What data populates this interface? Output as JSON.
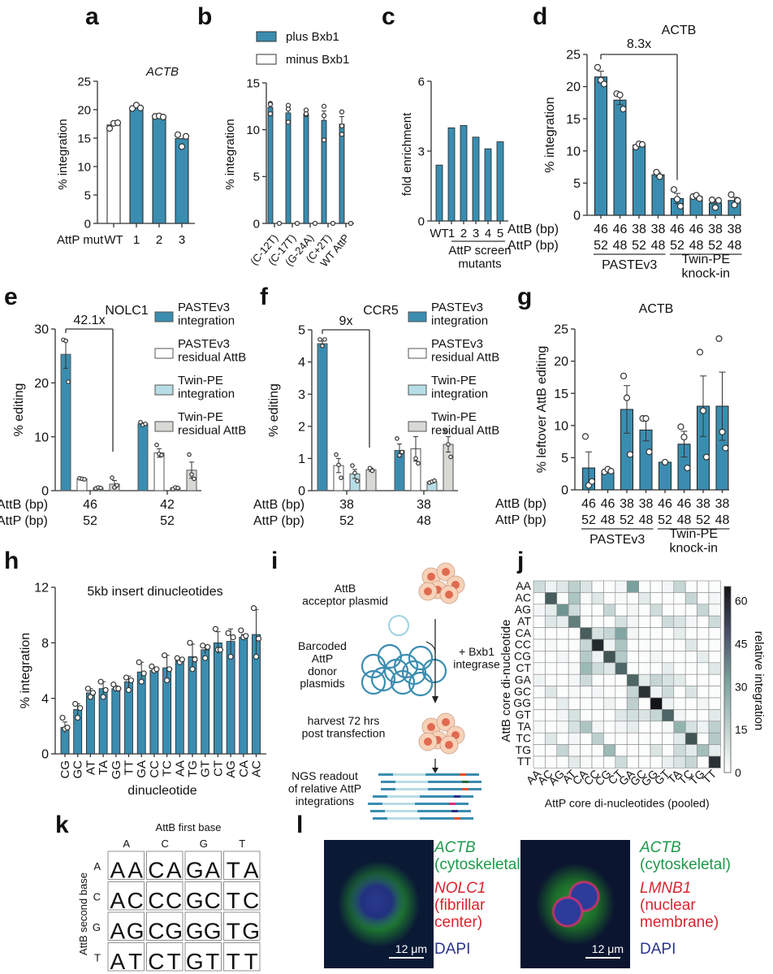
{
  "panel_labels": [
    "a",
    "b",
    "c",
    "d",
    "e",
    "f",
    "g",
    "h",
    "i",
    "j",
    "k",
    "l"
  ],
  "colors": {
    "teal": "#3a8db0",
    "teal_dark": "#2f7fa3",
    "light_blue": "#b7dde6",
    "grey": "#d8d8d4",
    "white": "#ffffff",
    "green_text": "#1e9a4a",
    "red_text": "#d9252f",
    "blue_text": "#2b3590"
  },
  "chart_data": [
    {
      "id": "a",
      "type": "bar",
      "title": "ACTB",
      "ylabel": "% integration",
      "xlabel_prefix": "AttP mut",
      "categories": [
        "WT",
        "1",
        "2",
        "3"
      ],
      "values": [
        17.3,
        20.3,
        18.8,
        14.9
      ],
      "points": [
        [
          16.7,
          17.6,
          17.7
        ],
        [
          20.2,
          20.8,
          20.3
        ],
        [
          18.8,
          18.9,
          18.7
        ],
        [
          15.6,
          13.5,
          15.3
        ]
      ],
      "fills": [
        "white",
        "teal",
        "teal",
        "teal"
      ],
      "ylim": [
        0,
        25
      ],
      "yticks": [
        0,
        5,
        10,
        15,
        20,
        25
      ]
    },
    {
      "id": "b",
      "type": "bar",
      "ylabel": "% integration",
      "legend": [
        {
          "label": "plus Bxb1",
          "fill": "teal"
        },
        {
          "label": "minus Bxb1",
          "fill": "white"
        }
      ],
      "legend_position": "top",
      "categories": [
        "(C-12T)",
        "(C-17T)",
        "(G-24A)",
        "(C+2T)",
        "WT AttP"
      ],
      "series": [
        {
          "name": "plus Bxb1",
          "values": [
            12.4,
            11.8,
            11.7,
            11.0,
            10.6
          ],
          "sem": [
            0.4,
            0.5,
            0.3,
            1.0,
            0.8
          ],
          "points": [
            [
              12.8,
              11.7,
              12.7
            ],
            [
              12.6,
              12.2,
              10.8
            ],
            [
              12.1,
              11.6,
              11.7
            ],
            [
              12.5,
              11.5,
              8.9
            ],
            [
              11.9,
              10.4,
              9.5
            ]
          ]
        },
        {
          "name": "minus Bxb1",
          "values": [
            0,
            0,
            0,
            0,
            0
          ],
          "sem": [
            0,
            0,
            0,
            0,
            0
          ],
          "points": [
            [
              0
            ],
            [
              0
            ],
            [
              0
            ],
            [
              0
            ],
            [
              0
            ]
          ]
        }
      ],
      "ylim": [
        0,
        15
      ],
      "yticks": [
        0,
        5,
        10,
        15
      ]
    },
    {
      "id": "c",
      "type": "bar",
      "ylabel": "fold enrichment",
      "categories": [
        "WT",
        "1",
        "2",
        "3",
        "4",
        "5"
      ],
      "values": [
        2.4,
        4.0,
        4.1,
        3.6,
        3.1,
        3.4
      ],
      "group_label": "AttP screen mutants",
      "ylim": [
        0,
        6
      ],
      "yticks": [
        0,
        3,
        6
      ]
    },
    {
      "id": "d",
      "type": "bar",
      "title": "ACTB",
      "ylabel": "% integration",
      "row_labels": [
        "AttB (bp)",
        "AttP (bp)"
      ],
      "attb": [
        "46",
        "46",
        "38",
        "38",
        "46",
        "46",
        "38",
        "38"
      ],
      "attp": [
        "52",
        "48",
        "52",
        "48",
        "52",
        "48",
        "52",
        "48"
      ],
      "values": [
        21.5,
        17.9,
        10.9,
        6.3,
        2.6,
        2.9,
        1.9,
        2.3
      ],
      "sem": [
        0.9,
        0.7,
        0.2,
        0.3,
        0.8,
        0.3,
        0.4,
        0.5
      ],
      "points": [
        [
          23.0,
          21.0,
          20.4
        ],
        [
          18.9,
          18.7,
          16.5
        ],
        [
          10.6,
          11.1,
          11.0
        ],
        [
          6.7,
          6.0
        ],
        [
          4.0,
          2.5,
          1.4
        ],
        [
          2.9,
          3.1,
          2.6
        ],
        [
          2.4,
          1.2,
          2.3
        ],
        [
          3.2,
          1.6,
          2.3
        ]
      ],
      "groups": [
        {
          "label": "PASTEv3",
          "span": [
            0,
            3
          ]
        },
        {
          "label": "Twin-PE\nknock-in",
          "span": [
            4,
            7
          ]
        }
      ],
      "annotation": {
        "text": "8.3x",
        "from": 0,
        "to": 4
      },
      "ylim": [
        0,
        25
      ],
      "yticks": [
        0,
        5,
        10,
        15,
        20,
        25
      ]
    },
    {
      "id": "e",
      "type": "bar",
      "title": "NOLC1",
      "ylabel": "% editing",
      "row_labels": [
        "AttB (bp)",
        "AttP (bp)"
      ],
      "groups": [
        {
          "attb": "46",
          "attp": "52"
        },
        {
          "attb": "42",
          "attp": "52"
        }
      ],
      "legend": [
        {
          "label": "PASTEv3\nintegration",
          "fill": "teal"
        },
        {
          "label": "PASTEv3\nresidual AttB",
          "fill": "white"
        },
        {
          "label": "Twin-PE\nintegration",
          "fill": "light_blue"
        },
        {
          "label": "Twin-PE\nresidual AttB",
          "fill": "grey"
        }
      ],
      "series_values": [
        [
          25.3,
          2.2,
          0.5,
          1.2
        ],
        [
          12.4,
          7.0,
          0.5,
          3.8
        ]
      ],
      "series_sem": [
        [
          2.6,
          0.1,
          0.1,
          0.7
        ],
        [
          0.2,
          0.8,
          0.1,
          1.5
        ]
      ],
      "series_points": [
        [
          [
            28.0,
            27.8,
            20.2
          ],
          [
            2.3,
            2.2,
            2.1
          ],
          [
            0.4,
            0.6,
            0.5
          ],
          [
            2.4,
            0.6,
            1.0
          ]
        ],
        [
          [
            12.7,
            12.2,
            12.4
          ],
          [
            8.5,
            6.8,
            6.6
          ],
          [
            0.3,
            0.6,
            0.5
          ],
          [
            6.7,
            3.0,
            2.2
          ]
        ]
      ],
      "annotation": {
        "text": "42.1x"
      },
      "ylim": [
        0,
        30
      ],
      "yticks": [
        0,
        10,
        20,
        30
      ]
    },
    {
      "id": "f",
      "type": "bar",
      "title": "CCR5",
      "ylabel": "% editing",
      "row_labels": [
        "AttB (bp)",
        "AttP (bp)"
      ],
      "groups": [
        {
          "attb": "38",
          "attp": "52"
        },
        {
          "attb": "38",
          "attp": "48"
        }
      ],
      "legend": [
        {
          "label": "PASTEv3\nintegration",
          "fill": "teal"
        },
        {
          "label": "PASTEv3\nresidual AttB",
          "fill": "white"
        },
        {
          "label": "Twin-PE\nintegration",
          "fill": "light_blue"
        },
        {
          "label": "Twin-PE\nresidual AttB",
          "fill": "grey"
        }
      ],
      "series_values": [
        [
          4.57,
          0.78,
          0.52,
          0.65
        ],
        [
          1.25,
          1.3,
          0.27,
          1.44
        ]
      ],
      "series_sem": [
        [
          0.08,
          0.22,
          0.14,
          0.05
        ],
        [
          0.2,
          0.38,
          0.03,
          0.24
        ]
      ],
      "series_points": [
        [
          [
            4.7,
            4.5,
            4.7
          ],
          [
            1.12,
            0.8,
            0.4
          ],
          [
            0.78,
            0.55,
            0.3
          ],
          [
            0.7,
            0.62
          ]
        ],
        [
          [
            1.62,
            1.1,
            1.2
          ],
          [
            2.05,
            1.0,
            0.85
          ],
          [
            0.25,
            0.28,
            0.31
          ],
          [
            1.85,
            1.44,
            1.05
          ]
        ]
      ],
      "annotation": {
        "text": "9x"
      },
      "ylim": [
        0,
        5
      ],
      "yticks": [
        0,
        1,
        2,
        3,
        4,
        5
      ]
    },
    {
      "id": "g",
      "type": "bar",
      "title": "ACTB",
      "ylabel": "% leftover AttB editing",
      "row_labels": [
        "AttB (bp)",
        "AttP (bp)"
      ],
      "attb": [
        "46",
        "46",
        "38",
        "38",
        "46",
        "46",
        "38",
        "38"
      ],
      "attp": [
        "52",
        "48",
        "52",
        "48",
        "52",
        "48",
        "52",
        "48"
      ],
      "values": [
        3.4,
        2.9,
        12.5,
        9.3,
        4.3,
        7.1,
        13.0,
        13.0
      ],
      "sem": [
        2.5,
        0.2,
        3.7,
        1.7,
        0,
        2.0,
        4.7,
        5.3
      ],
      "points": [
        [
          8.3,
          0.7,
          1.3
        ],
        [
          2.8,
          3.2,
          2.9
        ],
        [
          17.7,
          14.3,
          5.5
        ],
        [
          11.1,
          11.1,
          5.9
        ],
        [
          4.3
        ],
        [
          9.8,
          8.2,
          3.4
        ],
        [
          21.4,
          12.3,
          5.1
        ],
        [
          23.5,
          9.0,
          6.5
        ]
      ],
      "groups": [
        {
          "label": "PASTEv3",
          "span": [
            0,
            3
          ]
        },
        {
          "label": "Twin-PE\nknock-in",
          "span": [
            4,
            7
          ]
        }
      ],
      "ylim": [
        0,
        25
      ],
      "yticks": [
        0,
        5,
        10,
        15,
        20,
        25
      ]
    },
    {
      "id": "h",
      "type": "bar",
      "title": "5kb insert dinucleotides",
      "xlabel": "dinucleotide",
      "ylabel": "% integration",
      "categories": [
        "CG",
        "GC",
        "AT",
        "TA",
        "GG",
        "TT",
        "GA",
        "CC",
        "TC",
        "AA",
        "TG",
        "GT",
        "CT",
        "AG",
        "CA",
        "AC"
      ],
      "values": [
        1.9,
        3.2,
        4.4,
        4.7,
        4.7,
        5.2,
        5.9,
        6.0,
        6.2,
        6.7,
        7.0,
        7.5,
        8.0,
        8.1,
        8.4,
        8.6
      ],
      "sd": [
        0.4,
        0.4,
        0.3,
        0.5,
        0.2,
        0.4,
        0.7,
        0.2,
        0.9,
        0.2,
        0.9,
        0.3,
        0.8,
        0.9,
        0.2,
        1.8
      ],
      "points": [
        [
          2.6,
          1.8,
          1.9
        ],
        [
          3.6,
          2.6,
          3.3
        ],
        [
          4.7,
          4.1,
          4.4
        ],
        [
          5.2,
          4.1,
          4.6
        ],
        [
          5.0,
          4.7,
          4.7
        ],
        [
          5.5,
          4.6,
          5.3
        ],
        [
          6.6,
          5.2,
          5.8
        ],
        [
          6.3,
          6.0,
          6.1
        ],
        [
          7.1,
          5.3,
          6.1
        ],
        [
          6.9,
          6.6,
          6.8
        ],
        [
          8.0,
          6.1,
          6.8
        ],
        [
          7.8,
          6.9,
          7.7
        ],
        [
          9.0,
          7.5,
          7.5
        ],
        [
          8.7,
          7.0,
          8.4
        ],
        [
          8.9,
          8.4,
          8.5
        ],
        [
          10.5,
          7.0,
          8.3
        ]
      ],
      "ylim": [
        0,
        12
      ],
      "yticks": [
        0,
        4,
        8,
        12
      ]
    },
    {
      "id": "j",
      "type": "heatmap",
      "ylabel": "AttB core di-nucleotide",
      "xlabel": "AttP core di-nucleotides (pooled)",
      "colorbar_label": "relative integration",
      "colorbar_ticks": [
        0,
        15,
        30,
        45,
        60
      ],
      "zlim": [
        0,
        65
      ],
      "rows": [
        "AA",
        "AC",
        "AG",
        "AT",
        "CA",
        "CC",
        "CG",
        "CT",
        "GA",
        "GC",
        "GG",
        "GT",
        "TA",
        "TC",
        "TG",
        "TT"
      ],
      "cols": [
        "AA",
        "AC",
        "AG",
        "AT",
        "CA",
        "CC",
        "CG",
        "CT",
        "GA",
        "GC",
        "GG",
        "GT",
        "TA",
        "TC",
        "TG",
        "TT"
      ],
      "values": [
        [
          12,
          4,
          8,
          16,
          9,
          1,
          1,
          3,
          32,
          1,
          1,
          3,
          14,
          1,
          1,
          1
        ],
        [
          1,
          48,
          1,
          20,
          2,
          8,
          1,
          2,
          1,
          7,
          1,
          1,
          1,
          14,
          1,
          3
        ],
        [
          3,
          6,
          35,
          12,
          1,
          1,
          14,
          1,
          3,
          1,
          12,
          1,
          1,
          1,
          14,
          2
        ],
        [
          1,
          8,
          6,
          40,
          1,
          1,
          1,
          10,
          3,
          1,
          1,
          12,
          9,
          3,
          1,
          12
        ],
        [
          1,
          1,
          1,
          1,
          48,
          10,
          14,
          30,
          3,
          1,
          1,
          1,
          6,
          1,
          1,
          1
        ],
        [
          1,
          2,
          1,
          1,
          14,
          60,
          4,
          20,
          1,
          1,
          1,
          1,
          1,
          8,
          1,
          1
        ],
        [
          1,
          1,
          3,
          1,
          18,
          4,
          50,
          18,
          1,
          1,
          3,
          1,
          1,
          1,
          6,
          1
        ],
        [
          1,
          1,
          1,
          2,
          24,
          12,
          8,
          46,
          1,
          1,
          1,
          6,
          1,
          1,
          1,
          8
        ],
        [
          4,
          1,
          1,
          3,
          12,
          1,
          1,
          1,
          46,
          7,
          14,
          10,
          7,
          1,
          1,
          1
        ],
        [
          1,
          8,
          1,
          2,
          1,
          3,
          1,
          1,
          14,
          58,
          4,
          12,
          1,
          9,
          1,
          1
        ],
        [
          1,
          1,
          6,
          1,
          1,
          1,
          4,
          1,
          16,
          1,
          65,
          4,
          1,
          1,
          3,
          1
        ],
        [
          1,
          1,
          3,
          10,
          1,
          1,
          1,
          8,
          11,
          9,
          14,
          46,
          3,
          1,
          1,
          7
        ],
        [
          2,
          1,
          2,
          10,
          20,
          3,
          1,
          3,
          6,
          1,
          1,
          2,
          26,
          10,
          4,
          16
        ],
        [
          1,
          8,
          1,
          3,
          1,
          16,
          1,
          1,
          1,
          1,
          1,
          1,
          7,
          50,
          1,
          18
        ],
        [
          1,
          1,
          14,
          2,
          1,
          1,
          24,
          1,
          1,
          1,
          9,
          1,
          12,
          7,
          22,
          6
        ],
        [
          1,
          1,
          1,
          7,
          2,
          1,
          1,
          12,
          1,
          1,
          1,
          5,
          9,
          14,
          1,
          58
        ]
      ]
    },
    {
      "id": "k",
      "type": "table",
      "title": "AttB first base",
      "ylabel": "AttB second base",
      "col_labels": [
        "A",
        "C",
        "G",
        "T"
      ],
      "row_labels": [
        "A",
        "C",
        "G",
        "T"
      ],
      "cells": [
        [
          "AA",
          "CA",
          "GA",
          "TA"
        ],
        [
          "AC",
          "CC",
          "GC",
          "TC"
        ],
        [
          "AG",
          "CG",
          "GG",
          "TG"
        ],
        [
          "AT",
          "CT",
          "GT",
          "TT"
        ]
      ]
    }
  ],
  "diagram_i": {
    "attb_label": "AttB\nacceptor plasmid",
    "donor_label": "Barcoded\nAttP\ndonor\nplasmids",
    "integrase_label": "+ Bxb1\nintegrase",
    "harvest_label": "harvest 72 hrs\npost transfection",
    "ngs_label": "NGS readout\nof relative AttP\nintegrations"
  },
  "micro_l": [
    {
      "gene1": "ACTB",
      "loc1": "(cytoskeletal)",
      "gene2": "NOLC1",
      "loc2": "(fibrillar\ncenter)",
      "stain": "DAPI",
      "scale": "12 μm"
    },
    {
      "gene1": "ACTB",
      "loc1": "(cytoskeletal)",
      "gene2": "LMNB1",
      "loc2": "(nuclear\nmembrane)",
      "stain": "DAPI",
      "scale": "12 μm"
    }
  ]
}
